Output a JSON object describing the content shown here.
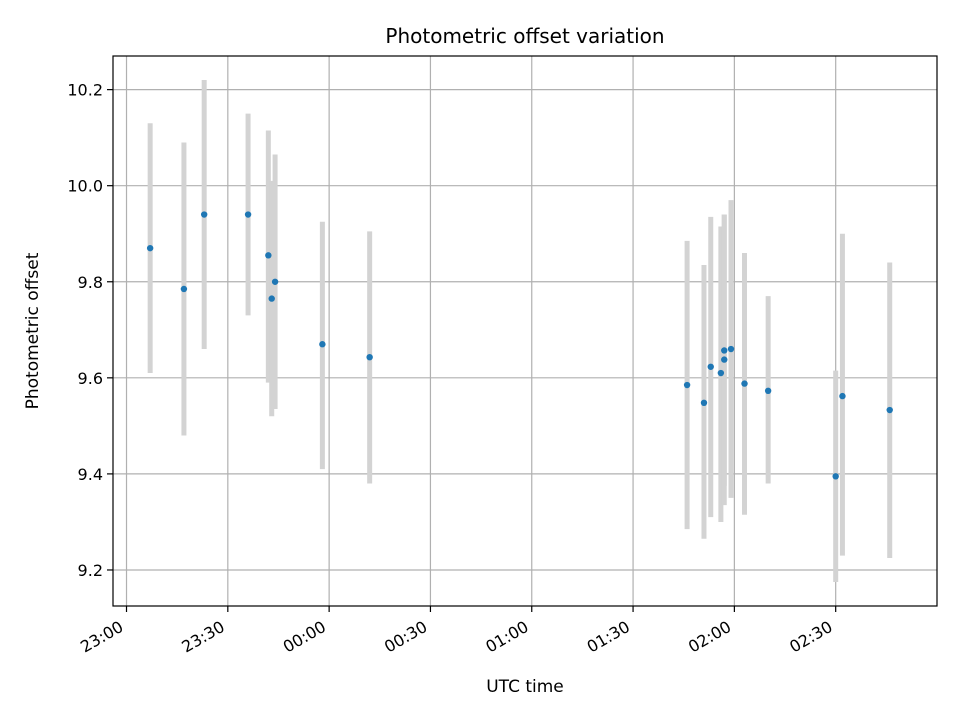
{
  "chart_data": {
    "type": "scatter",
    "title": "Photometric offset variation",
    "xlabel": "UTC time",
    "ylabel": "Photometric offset",
    "xlim": [
      "22:56",
      "03:00"
    ],
    "ylim": [
      9.125,
      10.27
    ],
    "grid": true,
    "x_ticks": [
      "23:00",
      "23:30",
      "00:00",
      "00:30",
      "01:00",
      "01:30",
      "02:00",
      "02:30"
    ],
    "y_ticks": [
      9.2,
      9.4,
      9.6,
      9.8,
      10.0,
      10.2
    ],
    "point_color": "#1f77b4",
    "errorbar_color": "#d3d3d3",
    "points": [
      {
        "time": "23:07",
        "offset": 9.87,
        "low": 9.61,
        "high": 10.13
      },
      {
        "time": "23:17",
        "offset": 9.785,
        "low": 9.48,
        "high": 10.09
      },
      {
        "time": "23:23",
        "offset": 9.94,
        "low": 9.66,
        "high": 10.22
      },
      {
        "time": "23:36",
        "offset": 9.94,
        "low": 9.73,
        "high": 10.15
      },
      {
        "time": "23:42",
        "offset": 9.855,
        "low": 9.59,
        "high": 10.115
      },
      {
        "time": "23:43",
        "offset": 9.765,
        "low": 9.52,
        "high": 10.01
      },
      {
        "time": "23:44",
        "offset": 9.8,
        "low": 9.535,
        "high": 10.065
      },
      {
        "time": "23:58",
        "offset": 9.67,
        "low": 9.41,
        "high": 9.925
      },
      {
        "time": "00:12",
        "offset": 9.643,
        "low": 9.38,
        "high": 9.905
      },
      {
        "time": "01:46",
        "offset": 9.585,
        "low": 9.285,
        "high": 9.885
      },
      {
        "time": "01:51",
        "offset": 9.548,
        "low": 9.265,
        "high": 9.835
      },
      {
        "time": "01:53",
        "offset": 9.623,
        "low": 9.31,
        "high": 9.935
      },
      {
        "time": "01:56",
        "offset": 9.61,
        "low": 9.3,
        "high": 9.915
      },
      {
        "time": "01:57",
        "offset": 9.638,
        "low": 9.335,
        "high": 9.94
      },
      {
        "time": "01:57",
        "offset": 9.657,
        "low": 9.375,
        "high": 9.94
      },
      {
        "time": "01:59",
        "offset": 9.66,
        "low": 9.35,
        "high": 9.97
      },
      {
        "time": "02:03",
        "offset": 9.588,
        "low": 9.315,
        "high": 9.86
      },
      {
        "time": "02:10",
        "offset": 9.573,
        "low": 9.38,
        "high": 9.77
      },
      {
        "time": "02:30",
        "offset": 9.395,
        "low": 9.175,
        "high": 9.615
      },
      {
        "time": "02:32",
        "offset": 9.562,
        "low": 9.23,
        "high": 9.9
      },
      {
        "time": "02:46",
        "offset": 9.533,
        "low": 9.225,
        "high": 9.84
      }
    ]
  }
}
